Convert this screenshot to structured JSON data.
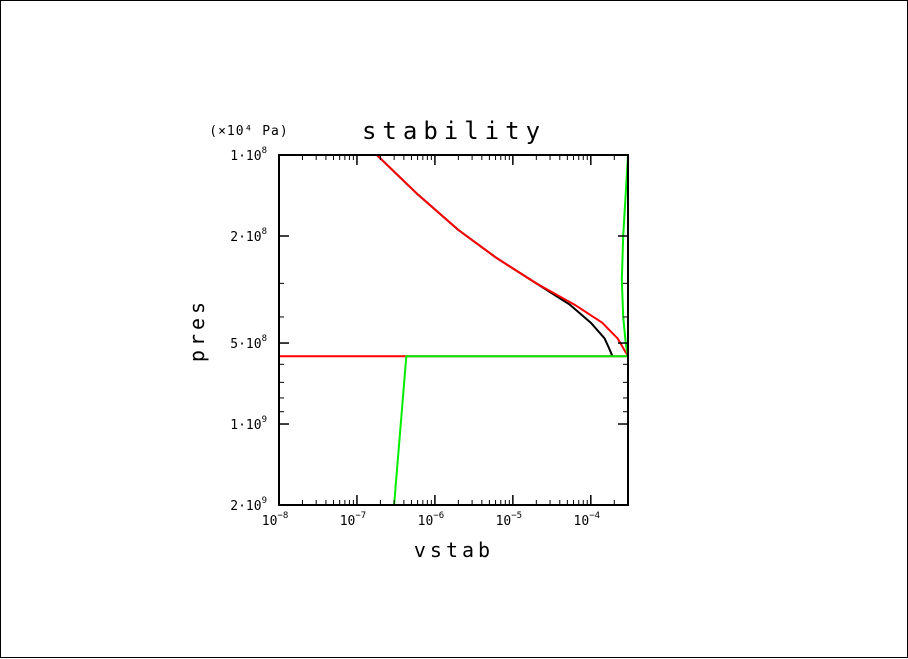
{
  "chart_data": {
    "type": "line",
    "title": "stability",
    "xlabel": "vstab",
    "ylabel": "pres",
    "y_unit": "(×10⁴ Pa)",
    "x_scale": "log",
    "y_scale": "log",
    "y_inverted": true,
    "xlim": [
      1e-08,
      0.0003
    ],
    "ylim": [
      100000000,
      2000000000
    ],
    "x_ticks": [
      {
        "value": 1e-08,
        "mant": "10",
        "exp": "−8"
      },
      {
        "value": 1e-07,
        "mant": "10",
        "exp": "−7"
      },
      {
        "value": 1e-06,
        "mant": "10",
        "exp": "−6"
      },
      {
        "value": 1e-05,
        "mant": "10",
        "exp": "−5"
      },
      {
        "value": 0.0001,
        "mant": "10",
        "exp": "−4"
      }
    ],
    "y_ticks": [
      {
        "value": 100000000,
        "mant": "1·10",
        "exp": "8"
      },
      {
        "value": 200000000,
        "mant": "2·10",
        "exp": "8"
      },
      {
        "value": 500000000,
        "mant": "5·10",
        "exp": "8"
      },
      {
        "value": 1000000000,
        "mant": "1·10",
        "exp": "9"
      },
      {
        "value": 2000000000,
        "mant": "2·10",
        "exp": "9"
      }
    ],
    "series": [
      {
        "color": "#000000",
        "points": [
          [
            1.8e-07,
            100000000
          ],
          [
            6e-07,
            140000000
          ],
          [
            2e-06,
            190000000
          ],
          [
            6e-06,
            240000000
          ],
          [
            2e-05,
            300000000
          ],
          [
            5.4e-05,
            360000000
          ],
          [
            0.0001,
            420000000
          ],
          [
            0.00015,
            480000000
          ],
          [
            0.00017,
            520000000
          ],
          [
            0.00019,
            560000000
          ]
        ]
      },
      {
        "color": "#ff0000",
        "points": [
          [
            1.8e-07,
            100000000
          ],
          [
            6e-07,
            140000000
          ],
          [
            2e-06,
            190000000
          ],
          [
            6e-06,
            240000000
          ],
          [
            2e-05,
            300000000
          ],
          [
            6.2e-05,
            360000000
          ],
          [
            0.00014,
            420000000
          ],
          [
            0.00022,
            480000000
          ],
          [
            0.0003,
            560000000
          ],
          [
            1e-08,
            560000000
          ],
          [
            1e-08,
            2000000000
          ]
        ]
      },
      {
        "color": "#00ee00",
        "points": [
          [
            0.0003,
            100000000
          ],
          [
            0.00026,
            200000000
          ],
          [
            0.00025,
            290000000
          ],
          [
            0.00026,
            400000000
          ],
          [
            0.00028,
            500000000
          ],
          [
            0.0003,
            560000000
          ],
          [
            4.3e-07,
            560000000
          ],
          [
            3e-07,
            2000000000
          ]
        ]
      }
    ]
  },
  "colors": {
    "axis": "#000000"
  }
}
